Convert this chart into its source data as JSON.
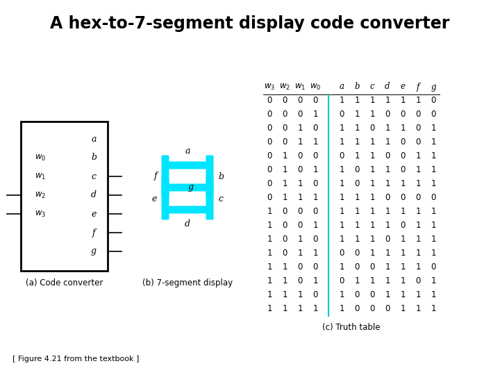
{
  "title": "A hex-to-7-segment display code converter",
  "caption": "[ Figure 4.21 from the textbook ]",
  "subtitle_a": "(a) Code converter",
  "subtitle_b": "(b) 7-segment display",
  "subtitle_c": "(c) Truth table",
  "bg_color": "#ffffff",
  "title_fontsize": 17,
  "truth_table": [
    [
      0,
      0,
      0,
      0,
      1,
      1,
      1,
      1,
      1,
      1,
      0
    ],
    [
      0,
      0,
      0,
      1,
      0,
      1,
      1,
      0,
      0,
      0,
      0
    ],
    [
      0,
      0,
      1,
      0,
      1,
      1,
      0,
      1,
      1,
      0,
      1
    ],
    [
      0,
      0,
      1,
      1,
      1,
      1,
      1,
      1,
      0,
      0,
      1
    ],
    [
      0,
      1,
      0,
      0,
      0,
      1,
      1,
      0,
      0,
      1,
      1
    ],
    [
      0,
      1,
      0,
      1,
      1,
      0,
      1,
      1,
      0,
      1,
      1
    ],
    [
      0,
      1,
      1,
      0,
      1,
      0,
      1,
      1,
      1,
      1,
      1
    ],
    [
      0,
      1,
      1,
      1,
      1,
      1,
      1,
      0,
      0,
      0,
      0
    ],
    [
      1,
      0,
      0,
      0,
      1,
      1,
      1,
      1,
      1,
      1,
      1
    ],
    [
      1,
      0,
      0,
      1,
      1,
      1,
      1,
      1,
      0,
      1,
      1
    ],
    [
      1,
      0,
      1,
      0,
      1,
      1,
      1,
      0,
      1,
      1,
      1
    ],
    [
      1,
      0,
      1,
      1,
      0,
      0,
      1,
      1,
      1,
      1,
      1
    ],
    [
      1,
      1,
      0,
      0,
      1,
      0,
      0,
      1,
      1,
      1,
      0
    ],
    [
      1,
      1,
      0,
      1,
      0,
      1,
      1,
      1,
      1,
      0,
      1
    ],
    [
      1,
      1,
      1,
      0,
      1,
      0,
      0,
      1,
      1,
      1,
      1
    ],
    [
      1,
      1,
      1,
      1,
      1,
      0,
      0,
      0,
      1,
      1,
      1
    ]
  ],
  "segment_color": "#00e5ff",
  "box_color": "#000000",
  "line_color": "#000000",
  "sep_color": "#00cccc"
}
